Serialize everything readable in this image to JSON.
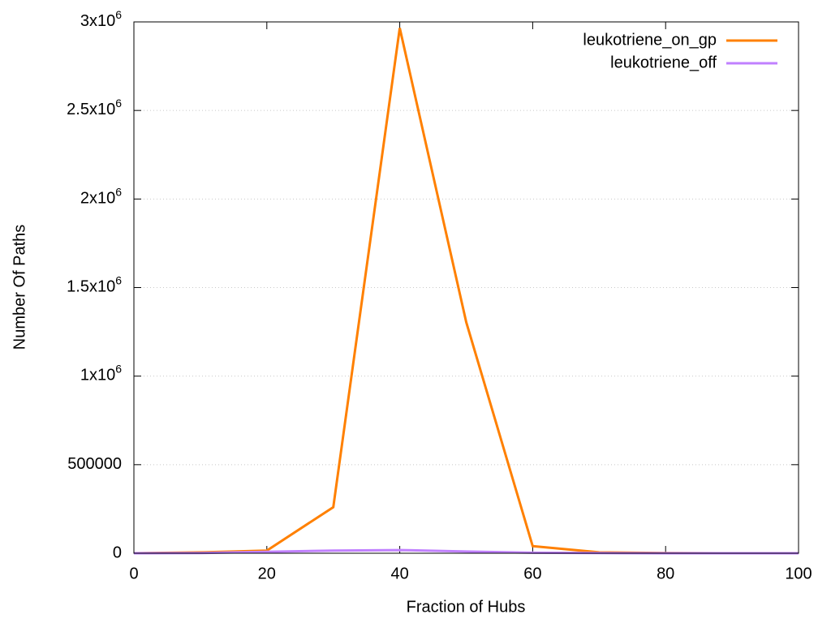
{
  "chart_data": {
    "type": "line",
    "x_label": "Fraction of Hubs",
    "y_label": "Number Of Paths",
    "x": [
      0,
      10,
      20,
      30,
      40,
      50,
      60,
      70,
      80,
      90,
      100
    ],
    "series": [
      {
        "name": "leukotriene_on_gp",
        "color": "#ff8000",
        "values": [
          0,
          5000,
          15000,
          260000,
          2965000,
          1305000,
          40000,
          5000,
          1000,
          0,
          0
        ]
      },
      {
        "name": "leukotriene_off",
        "color": "#c080ff",
        "values": [
          0,
          1000,
          8000,
          15000,
          18000,
          10000,
          3000,
          1000,
          0,
          0,
          0
        ]
      }
    ],
    "xlim": [
      0,
      100
    ],
    "xticks": [
      0,
      20,
      40,
      60,
      80,
      100
    ],
    "ylim": [
      0,
      3000000
    ],
    "yticks": [
      0,
      500000,
      {
        "value": 1000000,
        "label": "1x10",
        "exponent": "6"
      },
      {
        "value": 1500000,
        "label": "1.5x10",
        "exponent": "6"
      },
      {
        "value": 2000000,
        "label": "2x10",
        "exponent": "6"
      },
      {
        "value": 2500000,
        "label": "2.5x10",
        "exponent": "6"
      },
      {
        "value": 3000000,
        "label": "3x10",
        "exponent": "6"
      }
    ],
    "grid": true,
    "legend": "top-right"
  }
}
